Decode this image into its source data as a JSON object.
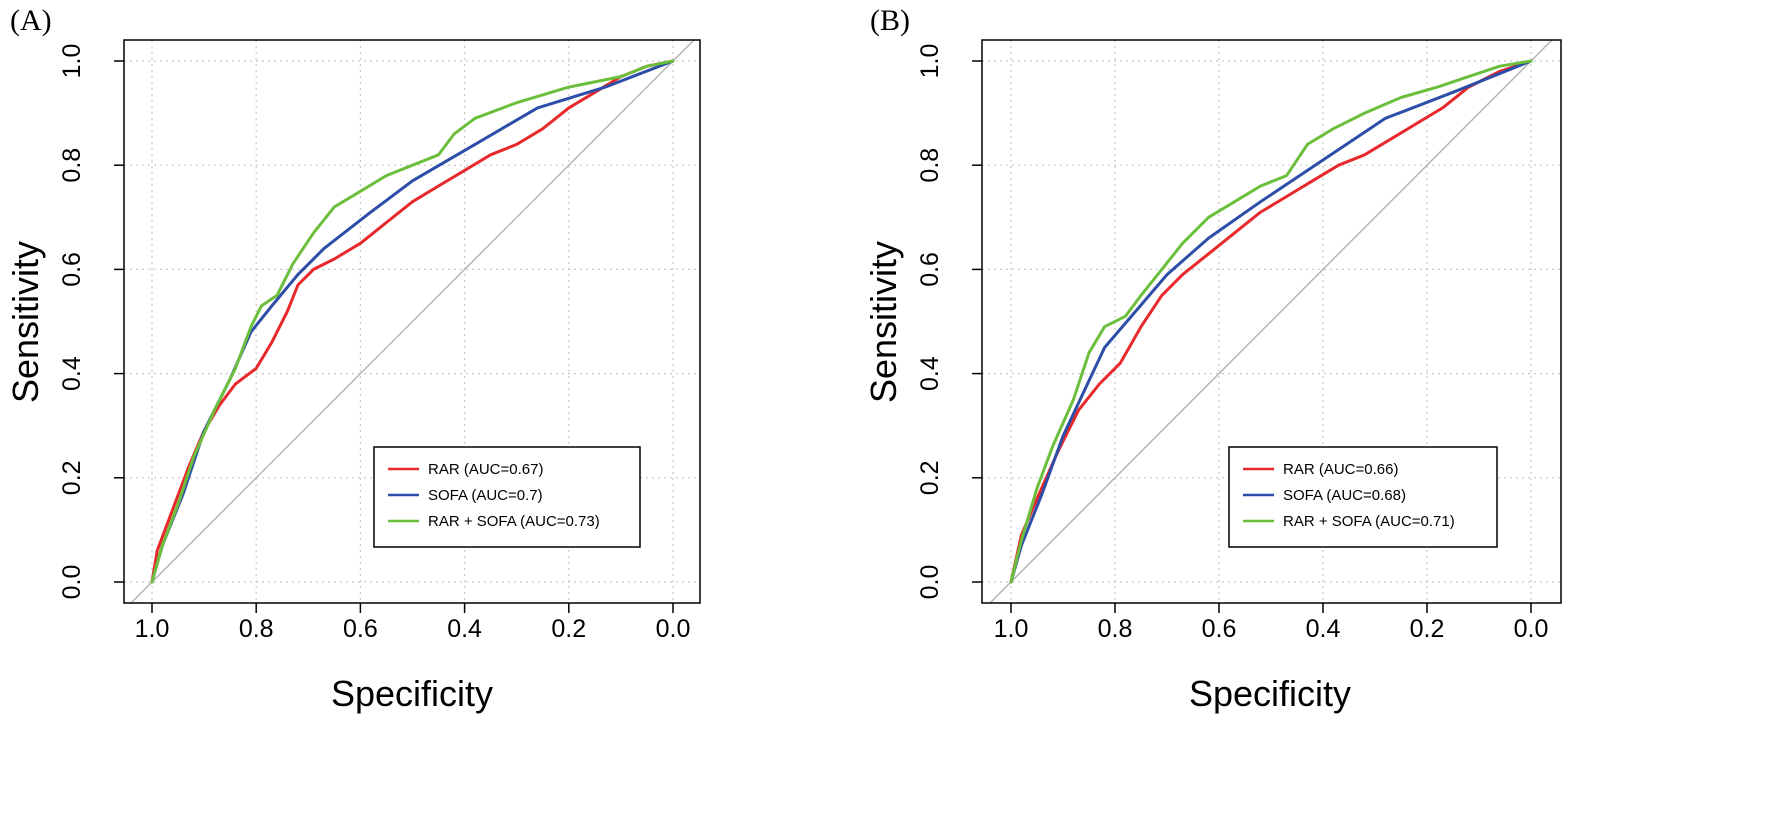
{
  "chart_data": [
    {
      "type": "line",
      "panel_label": "(A)",
      "xlabel": "Specificity",
      "ylabel": "Sensitivity",
      "xlim": [
        1.0,
        0.0
      ],
      "ylim": [
        0.0,
        1.0
      ],
      "xticks": [
        "1.0",
        "0.8",
        "0.6",
        "0.4",
        "0.2",
        "0.0"
      ],
      "yticks": [
        "0.0",
        "0.2",
        "0.4",
        "0.6",
        "0.8",
        "1.0"
      ],
      "grid": true,
      "legend_position": "bottom-right",
      "reference_line": "diagonal",
      "series": [
        {
          "name": "RAR (AUC=0.67)",
          "color": "#e8292b",
          "points": [
            [
              1.0,
              0.0
            ],
            [
              0.99,
              0.06
            ],
            [
              0.96,
              0.14
            ],
            [
              0.93,
              0.22
            ],
            [
              0.9,
              0.29
            ],
            [
              0.87,
              0.34
            ],
            [
              0.84,
              0.38
            ],
            [
              0.8,
              0.41
            ],
            [
              0.77,
              0.46
            ],
            [
              0.74,
              0.52
            ],
            [
              0.72,
              0.57
            ],
            [
              0.69,
              0.6
            ],
            [
              0.65,
              0.62
            ],
            [
              0.6,
              0.65
            ],
            [
              0.55,
              0.69
            ],
            [
              0.5,
              0.73
            ],
            [
              0.45,
              0.76
            ],
            [
              0.4,
              0.79
            ],
            [
              0.35,
              0.82
            ],
            [
              0.3,
              0.84
            ],
            [
              0.25,
              0.87
            ],
            [
              0.2,
              0.91
            ],
            [
              0.15,
              0.94
            ],
            [
              0.1,
              0.97
            ],
            [
              0.05,
              0.99
            ],
            [
              0.0,
              1.0
            ]
          ]
        },
        {
          "name": "SOFA (AUC=0.7)",
          "color": "#2c4ea8",
          "points": [
            [
              1.0,
              0.0
            ],
            [
              0.98,
              0.07
            ],
            [
              0.94,
              0.17
            ],
            [
              0.9,
              0.29
            ],
            [
              0.85,
              0.39
            ],
            [
              0.81,
              0.48
            ],
            [
              0.77,
              0.53
            ],
            [
              0.72,
              0.59
            ],
            [
              0.67,
              0.64
            ],
            [
              0.58,
              0.71
            ],
            [
              0.5,
              0.77
            ],
            [
              0.38,
              0.84
            ],
            [
              0.26,
              0.91
            ],
            [
              0.13,
              0.95
            ],
            [
              0.0,
              1.0
            ]
          ]
        },
        {
          "name": "RAR + SOFA (AUC=0.73)",
          "color": "#6cbf3c",
          "points": [
            [
              1.0,
              0.0
            ],
            [
              0.98,
              0.07
            ],
            [
              0.95,
              0.15
            ],
            [
              0.92,
              0.24
            ],
            [
              0.88,
              0.33
            ],
            [
              0.84,
              0.41
            ],
            [
              0.81,
              0.49
            ],
            [
              0.79,
              0.53
            ],
            [
              0.76,
              0.55
            ],
            [
              0.73,
              0.61
            ],
            [
              0.69,
              0.67
            ],
            [
              0.65,
              0.72
            ],
            [
              0.6,
              0.75
            ],
            [
              0.55,
              0.78
            ],
            [
              0.5,
              0.8
            ],
            [
              0.45,
              0.82
            ],
            [
              0.42,
              0.86
            ],
            [
              0.38,
              0.89
            ],
            [
              0.3,
              0.92
            ],
            [
              0.2,
              0.95
            ],
            [
              0.1,
              0.97
            ],
            [
              0.05,
              0.99
            ],
            [
              0.0,
              1.0
            ]
          ]
        }
      ]
    },
    {
      "type": "line",
      "panel_label": "(B)",
      "xlabel": "Specificity",
      "ylabel": "Sensitivity",
      "xlim": [
        1.0,
        0.0
      ],
      "ylim": [
        0.0,
        1.0
      ],
      "xticks": [
        "1.0",
        "0.8",
        "0.6",
        "0.4",
        "0.2",
        "0.0"
      ],
      "yticks": [
        "0.0",
        "0.2",
        "0.4",
        "0.6",
        "0.8",
        "1.0"
      ],
      "grid": true,
      "legend_position": "bottom-right",
      "reference_line": "diagonal",
      "series": [
        {
          "name": "RAR (AUC=0.66)",
          "color": "#e8292b",
          "points": [
            [
              1.0,
              0.0
            ],
            [
              0.98,
              0.09
            ],
            [
              0.95,
              0.16
            ],
            [
              0.91,
              0.25
            ],
            [
              0.87,
              0.33
            ],
            [
              0.83,
              0.38
            ],
            [
              0.79,
              0.42
            ],
            [
              0.75,
              0.49
            ],
            [
              0.71,
              0.55
            ],
            [
              0.67,
              0.59
            ],
            [
              0.62,
              0.63
            ],
            [
              0.57,
              0.67
            ],
            [
              0.52,
              0.71
            ],
            [
              0.47,
              0.74
            ],
            [
              0.42,
              0.77
            ],
            [
              0.37,
              0.8
            ],
            [
              0.32,
              0.82
            ],
            [
              0.27,
              0.85
            ],
            [
              0.22,
              0.88
            ],
            [
              0.17,
              0.91
            ],
            [
              0.12,
              0.95
            ],
            [
              0.06,
              0.98
            ],
            [
              0.0,
              1.0
            ]
          ]
        },
        {
          "name": "SOFA (AUC=0.68)",
          "color": "#2c4ea8",
          "points": [
            [
              1.0,
              0.0
            ],
            [
              0.98,
              0.07
            ],
            [
              0.94,
              0.17
            ],
            [
              0.9,
              0.28
            ],
            [
              0.82,
              0.45
            ],
            [
              0.76,
              0.52
            ],
            [
              0.7,
              0.59
            ],
            [
              0.62,
              0.66
            ],
            [
              0.52,
              0.73
            ],
            [
              0.4,
              0.81
            ],
            [
              0.28,
              0.89
            ],
            [
              0.15,
              0.94
            ],
            [
              0.0,
              1.0
            ]
          ]
        },
        {
          "name": "RAR + SOFA (AUC=0.71)",
          "color": "#6cbf3c",
          "points": [
            [
              1.0,
              0.0
            ],
            [
              0.98,
              0.08
            ],
            [
              0.95,
              0.18
            ],
            [
              0.92,
              0.26
            ],
            [
              0.88,
              0.35
            ],
            [
              0.85,
              0.44
            ],
            [
              0.82,
              0.49
            ],
            [
              0.78,
              0.51
            ],
            [
              0.75,
              0.55
            ],
            [
              0.71,
              0.6
            ],
            [
              0.67,
              0.65
            ],
            [
              0.62,
              0.7
            ],
            [
              0.57,
              0.73
            ],
            [
              0.52,
              0.76
            ],
            [
              0.47,
              0.78
            ],
            [
              0.43,
              0.84
            ],
            [
              0.38,
              0.87
            ],
            [
              0.32,
              0.9
            ],
            [
              0.25,
              0.93
            ],
            [
              0.18,
              0.95
            ],
            [
              0.12,
              0.97
            ],
            [
              0.06,
              0.99
            ],
            [
              0.0,
              1.0
            ]
          ]
        }
      ]
    }
  ]
}
